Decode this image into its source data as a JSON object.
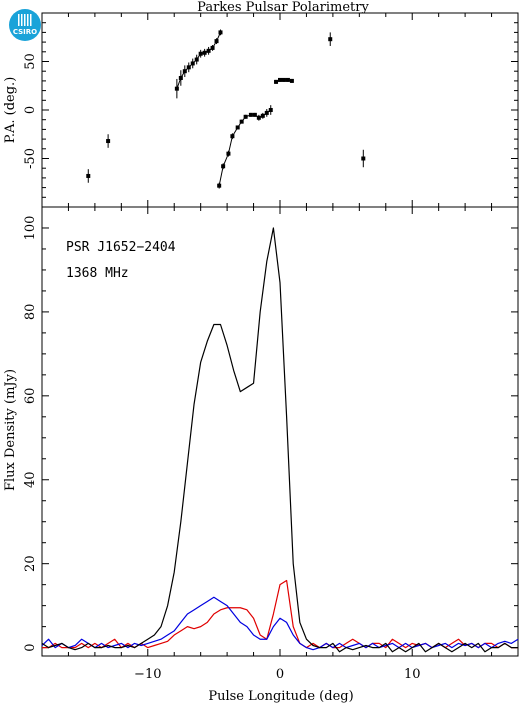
{
  "header": {
    "logo_text": "CSIRO",
    "title": "Parkes Pulsar Polarimetry"
  },
  "annotations": {
    "source": "PSR J1652−2404",
    "frequency": "1368 MHz"
  },
  "colors": {
    "total_intensity": "#000000",
    "linear_polarization": "#e00000",
    "circular_polarization": "#0000e0"
  },
  "chart_data": [
    {
      "type": "scatter",
      "title": "Parkes Pulsar Polarimetry",
      "xlabel": "",
      "ylabel": "P.A. (deg.)",
      "xlim": [
        -18,
        18
      ],
      "ylim": [
        -100,
        100
      ],
      "y_ticks": [
        -50,
        0,
        50
      ],
      "x_ticks": [
        -10,
        0,
        10
      ],
      "grid": false,
      "series": [
        {
          "connected": false,
          "points": [
            {
              "x": -14.5,
              "y": -68,
              "err": 7
            },
            {
              "x": -13.0,
              "y": -32,
              "err": 7
            },
            {
              "x": 3.8,
              "y": 73,
              "err": 7
            },
            {
              "x": 6.3,
              "y": -50,
              "err": 9
            }
          ]
        },
        {
          "connected": true,
          "points": [
            {
              "x": -7.8,
              "y": 22,
              "err": 10
            },
            {
              "x": -7.5,
              "y": 33,
              "err": 8
            },
            {
              "x": -7.2,
              "y": 40,
              "err": 6
            },
            {
              "x": -6.9,
              "y": 44,
              "err": 5
            },
            {
              "x": -6.6,
              "y": 48,
              "err": 5
            },
            {
              "x": -6.3,
              "y": 52,
              "err": 5
            },
            {
              "x": -6.0,
              "y": 58,
              "err": 4
            },
            {
              "x": -5.7,
              "y": 59,
              "err": 4
            },
            {
              "x": -5.4,
              "y": 61,
              "err": 4
            },
            {
              "x": -5.1,
              "y": 64,
              "err": 3
            },
            {
              "x": -4.8,
              "y": 71,
              "err": 3
            },
            {
              "x": -4.5,
              "y": 80,
              "err": 3
            }
          ]
        },
        {
          "connected": true,
          "points": [
            {
              "x": -4.6,
              "y": -78,
              "err": 3
            },
            {
              "x": -4.3,
              "y": -58,
              "err": 3
            },
            {
              "x": -3.9,
              "y": -45,
              "err": 3
            },
            {
              "x": -3.6,
              "y": -27,
              "err": 3
            },
            {
              "x": -3.2,
              "y": -18,
              "err": 2
            },
            {
              "x": -2.9,
              "y": -12,
              "err": 2
            },
            {
              "x": -2.6,
              "y": -7,
              "err": 2
            },
            {
              "x": -2.2,
              "y": -5,
              "err": 2
            },
            {
              "x": -1.9,
              "y": -5,
              "err": 2
            },
            {
              "x": -1.6,
              "y": -8,
              "err": 3
            },
            {
              "x": -1.3,
              "y": -6,
              "err": 3
            },
            {
              "x": -1.0,
              "y": -3,
              "err": 4
            },
            {
              "x": -0.7,
              "y": 0,
              "err": 5
            }
          ]
        },
        {
          "connected": true,
          "points": [
            {
              "x": -0.3,
              "y": 29,
              "err": 2
            },
            {
              "x": 0.0,
              "y": 31,
              "err": 2
            },
            {
              "x": 0.3,
              "y": 31,
              "err": 2
            },
            {
              "x": 0.6,
              "y": 31,
              "err": 2
            },
            {
              "x": 0.9,
              "y": 30,
              "err": 2
            }
          ]
        }
      ]
    },
    {
      "type": "line",
      "xlabel": "Pulse Longitude (deg)",
      "ylabel": "Flux Density (mJy)",
      "xlim": [
        -18,
        18
      ],
      "ylim": [
        -2,
        105
      ],
      "x_ticks": [
        -10,
        0,
        10
      ],
      "y_ticks": [
        0,
        20,
        40,
        60,
        80,
        100
      ],
      "grid": false,
      "x": [
        -18.0,
        -17.5,
        -17.0,
        -16.5,
        -16.0,
        -15.5,
        -15.0,
        -14.5,
        -14.0,
        -13.5,
        -13.0,
        -12.5,
        -12.0,
        -11.5,
        -11.0,
        -10.5,
        -10.0,
        -9.5,
        -9.0,
        -8.5,
        -8.0,
        -7.5,
        -7.0,
        -6.5,
        -6.0,
        -5.5,
        -5.0,
        -4.5,
        -4.0,
        -3.5,
        -3.0,
        -2.5,
        -2.0,
        -1.5,
        -1.0,
        -0.5,
        0.0,
        0.5,
        1.0,
        1.5,
        2.0,
        2.5,
        3.0,
        3.5,
        4.0,
        4.5,
        5.0,
        5.5,
        6.0,
        6.5,
        7.0,
        7.5,
        8.0,
        8.5,
        9.0,
        9.5,
        10.0,
        10.5,
        11.0,
        11.5,
        12.0,
        12.5,
        13.0,
        13.5,
        14.0,
        14.5,
        15.0,
        15.5,
        16.0,
        16.5,
        17.0,
        17.5,
        18.0
      ],
      "series": [
        {
          "color": "#000000",
          "values": [
            1,
            0,
            0.5,
            1,
            0,
            -0.5,
            0,
            1,
            0,
            0,
            0.5,
            0,
            0,
            0.5,
            0,
            1,
            2,
            3,
            5,
            10,
            18,
            30,
            44,
            58,
            68,
            73,
            77,
            77,
            72,
            66,
            61,
            62,
            63,
            80,
            92,
            100,
            87,
            55,
            20,
            6,
            2,
            0.5,
            0,
            0,
            1,
            -1,
            0,
            -0.5,
            0,
            0.5,
            0,
            0,
            1,
            -1,
            0,
            -1,
            0,
            1,
            -1,
            0,
            1,
            0,
            -1,
            0,
            1,
            0,
            1,
            -1,
            0,
            0,
            1,
            0,
            0
          ]
        },
        {
          "color": "#e00000",
          "values": [
            0,
            0,
            1,
            0,
            0,
            0,
            1,
            0,
            1,
            0,
            1,
            2,
            0,
            1,
            0,
            1,
            0,
            0.5,
            1,
            1.5,
            3,
            4,
            5,
            4.5,
            5,
            6,
            8,
            9,
            9.5,
            9.5,
            9.5,
            9,
            7,
            3,
            2,
            8,
            15,
            16,
            5,
            1,
            0,
            1,
            0,
            1,
            0,
            0,
            1,
            2,
            1,
            0,
            1,
            1,
            0,
            2,
            1,
            0,
            1,
            0.5,
            1,
            0,
            1,
            0,
            1,
            2,
            0.5,
            1,
            0,
            1,
            1,
            0,
            1,
            0,
            0
          ]
        },
        {
          "color": "#0000e0",
          "values": [
            0.5,
            2,
            0,
            1,
            0,
            0.5,
            2,
            1,
            0,
            1,
            0,
            0.5,
            1,
            0,
            1,
            0.5,
            1,
            1.5,
            2,
            3,
            4,
            6,
            8,
            9,
            10,
            11,
            12,
            11,
            10,
            8,
            6,
            5,
            3,
            2,
            2,
            5,
            7,
            6,
            3,
            1,
            0,
            -0.5,
            0,
            1,
            0,
            1,
            0,
            0.5,
            1,
            0,
            1,
            0,
            0.5,
            1,
            0,
            1,
            0,
            0.5,
            1,
            0,
            0.5,
            1,
            0,
            1,
            0.5,
            1,
            0,
            1,
            0,
            1,
            1.5,
            1,
            2
          ]
        }
      ]
    }
  ]
}
